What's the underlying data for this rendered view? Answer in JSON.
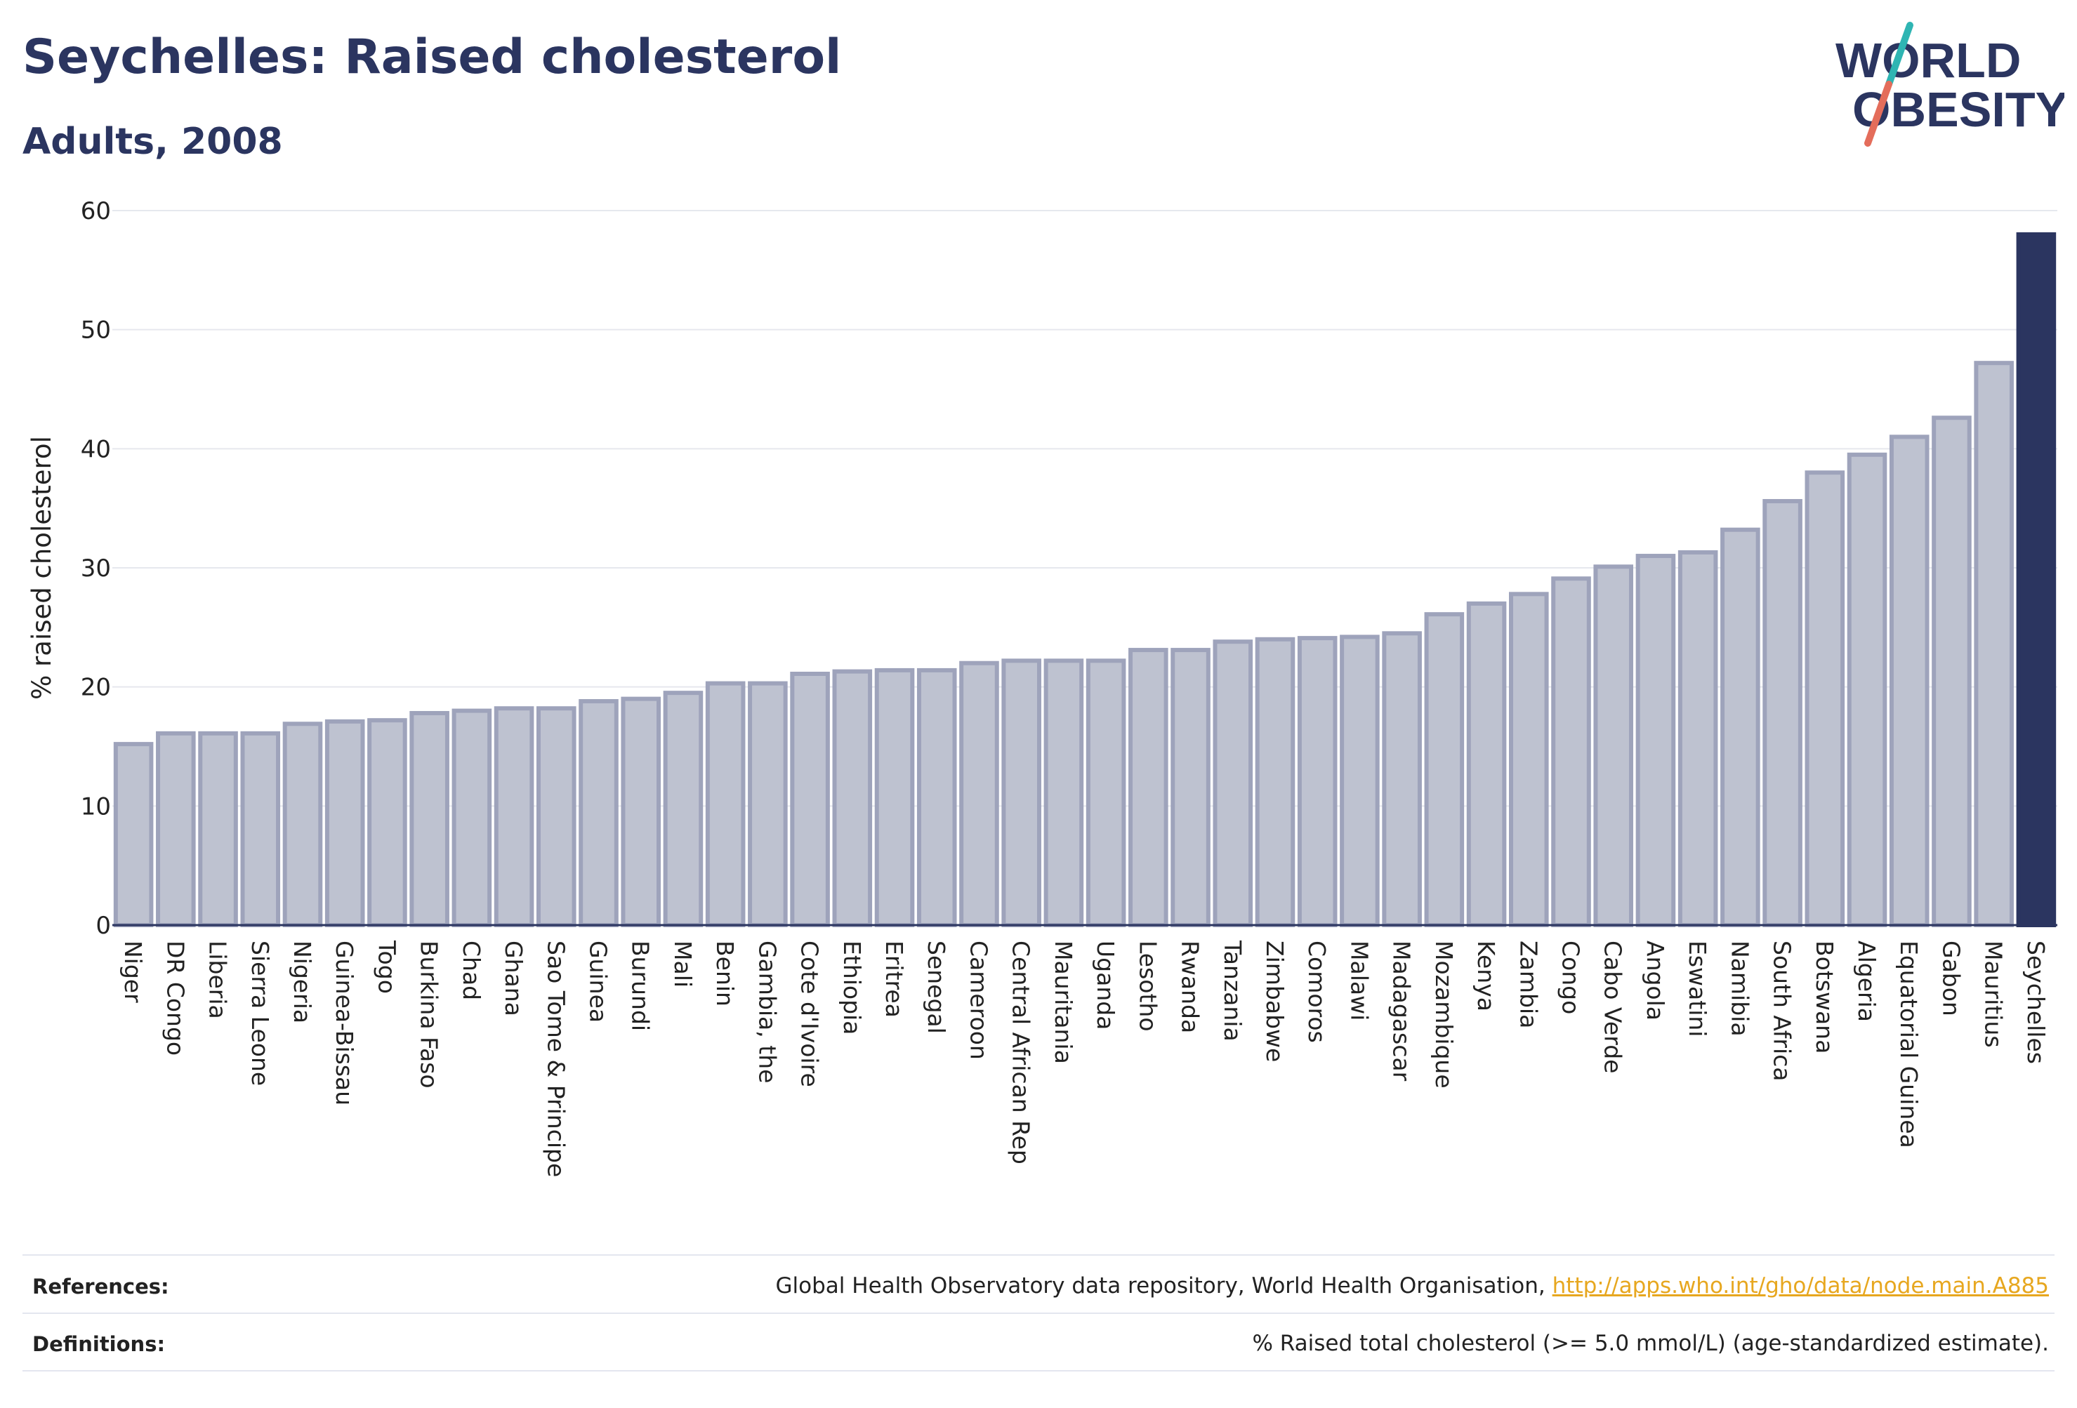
{
  "header": {
    "title": "Seychelles: Raised cholesterol",
    "subtitle": "Adults, 2008"
  },
  "logo": {
    "line1": "WORLD",
    "line2": "OBESITY"
  },
  "colors": {
    "highlight": "#2b3560",
    "bar_fill": "#bec2d0",
    "bar_stroke": "#9ea3bb",
    "grid": "#e6e8ee",
    "title": "#2b3560",
    "logo_slash_teal": "#2fb5b3",
    "logo_slash_coral": "#e46d5b",
    "link": "#e7a71f"
  },
  "chart_data": {
    "type": "bar",
    "ylabel": "% raised cholesterol",
    "ylim": [
      0,
      60
    ],
    "yticks": [
      0,
      10,
      20,
      30,
      40,
      50,
      60
    ],
    "grid": true,
    "highlight": "Seychelles",
    "categories": [
      "Niger",
      "DR Congo",
      "Liberia",
      "Sierra Leone",
      "Nigeria",
      "Guinea-Bissau",
      "Togo",
      "Burkina Faso",
      "Chad",
      "Ghana",
      "Sao Tome & Principe",
      "Guinea",
      "Burundi",
      "Mali",
      "Benin",
      "Gambia, the",
      "Cote d'Ivoire",
      "Ethiopia",
      "Eritrea",
      "Senegal",
      "Cameroon",
      "Central African Rep",
      "Mauritania",
      "Uganda",
      "Lesotho",
      "Rwanda",
      "Tanzania",
      "Zimbabwe",
      "Comoros",
      "Malawi",
      "Madagascar",
      "Mozambique",
      "Kenya",
      "Zambia",
      "Congo",
      "Cabo Verde",
      "Angola",
      "Eswatini",
      "Namibia",
      "South Africa",
      "Botswana",
      "Algeria",
      "Equatorial Guinea",
      "Gabon",
      "Mauritius",
      "Seychelles"
    ],
    "values": [
      15.2,
      16.1,
      16.1,
      16.1,
      16.9,
      17.1,
      17.2,
      17.8,
      18.0,
      18.2,
      18.2,
      18.8,
      19.0,
      19.5,
      20.3,
      20.3,
      21.1,
      21.3,
      21.4,
      21.4,
      22.0,
      22.2,
      22.2,
      22.2,
      23.1,
      23.1,
      23.8,
      24.0,
      24.1,
      24.2,
      24.5,
      26.1,
      27.0,
      27.8,
      29.1,
      30.1,
      31.0,
      31.3,
      33.2,
      35.6,
      38.0,
      39.5,
      41.0,
      42.6,
      47.2,
      58.0
    ]
  },
  "footer": {
    "references_label": "References:",
    "references_text": "Global Health Observatory data repository, World Health Organisation, ",
    "references_link": "http://apps.who.int/gho/data/node.main.A885",
    "definitions_label": "Definitions:",
    "definitions_text": "% Raised total cholesterol (>= 5.0 mmol/L) (age-standardized estimate)."
  }
}
